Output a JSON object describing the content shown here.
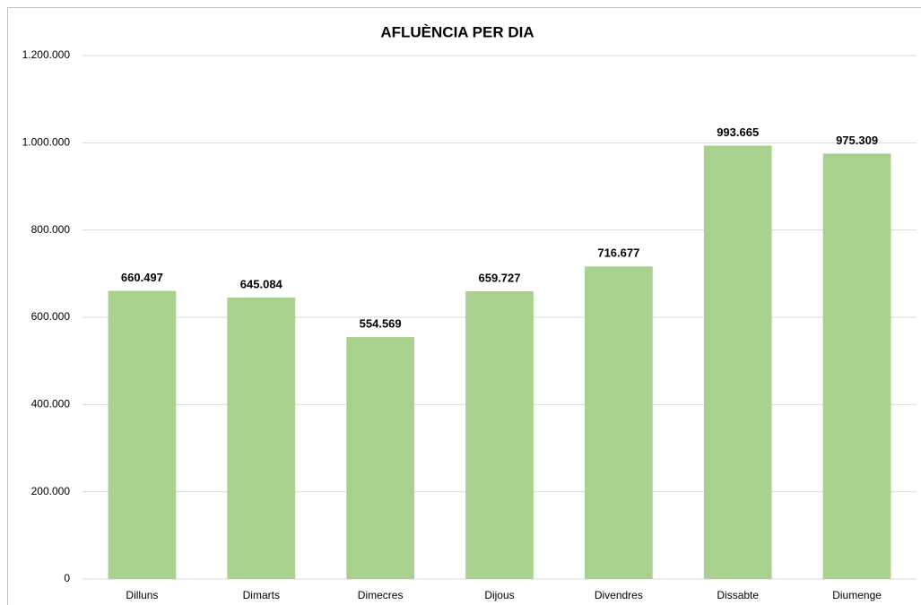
{
  "chart_data": {
    "type": "bar",
    "title": "AFLUÈNCIA PER DIA",
    "categories": [
      "Dilluns",
      "Dimarts",
      "Dimecres",
      "Dijous",
      "Divendres",
      "Dissabte",
      "Diumenge"
    ],
    "values": [
      660497,
      645084,
      554569,
      659727,
      716677,
      993665,
      975309
    ],
    "value_labels": [
      "660.497",
      "645.084",
      "554.569",
      "659.727",
      "716.677",
      "993.665",
      "975.309"
    ],
    "color": "#a9d18e",
    "ylim": [
      0,
      1200000
    ],
    "yticks": [
      0,
      {
        "value": 200000,
        "label": "200.000"
      },
      {
        "value": 400000,
        "label": "400.000"
      },
      {
        "value": 600000,
        "label": "600.000"
      },
      {
        "value": 800000,
        "label": "800.000"
      },
      {
        "value": 1000000,
        "label": "1.000.000"
      },
      {
        "value": 1200000,
        "label": "1.200.000"
      }
    ],
    "grid": true
  }
}
